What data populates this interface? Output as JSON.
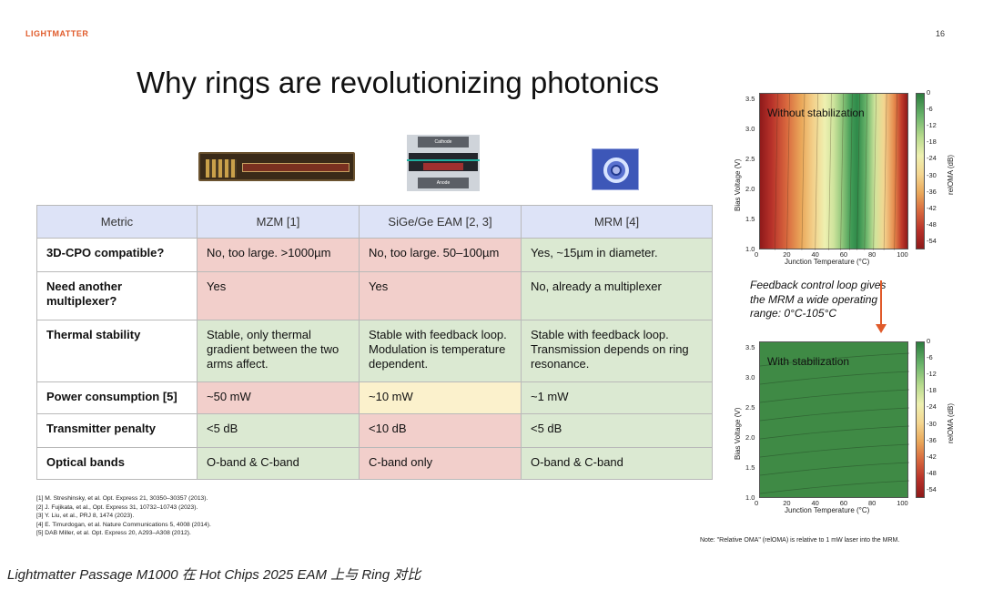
{
  "header": {
    "logo": "LIGHTMATTER",
    "page_number": "16"
  },
  "title": "Why rings are revolutionizing photonics",
  "device_images": {
    "mzm": "mzm-micrograph",
    "eam": "eam-cross-section",
    "mrm": "ring-modulator-micrograph",
    "eam_cathode": "Cathode",
    "eam_anode": "Anode"
  },
  "table": {
    "headers": [
      "Metric",
      "MZM [1]",
      "SiGe/Ge EAM [2, 3]",
      "MRM [4]"
    ],
    "rows": [
      {
        "metric": "3D-CPO compatible?",
        "mzm": "No, too large. >1000µm",
        "eam": "No, too large. 50–100µm",
        "mrm": "Yes, ~15µm in diameter.",
        "colors": [
          "red",
          "red",
          "green"
        ]
      },
      {
        "metric": "Need another multiplexer?",
        "mzm": "Yes",
        "eam": "Yes",
        "mrm": "No, already a multiplexer",
        "colors": [
          "red",
          "red",
          "green"
        ]
      },
      {
        "metric": "Thermal stability",
        "mzm": "Stable, only thermal gradient between the two arms affect.",
        "eam": "Stable with feedback loop. Modulation is temperature dependent.",
        "mrm": "Stable with feedback loop. Transmission depends on ring resonance.",
        "colors": [
          "green",
          "green",
          "green"
        ]
      },
      {
        "metric": "Power consumption [5]",
        "mzm": "~50 mW",
        "eam": "~10 mW",
        "mrm": "~1 mW",
        "colors": [
          "red",
          "yellow",
          "green"
        ]
      },
      {
        "metric": "Transmitter penalty",
        "mzm": "<5 dB",
        "eam": "<10 dB",
        "mrm": "<5 dB",
        "colors": [
          "green",
          "red",
          "green"
        ]
      },
      {
        "metric": "Optical bands",
        "mzm": "O-band & C-band",
        "eam": "C-band only",
        "mrm": "O-band & C-band",
        "colors": [
          "green",
          "red",
          "green"
        ]
      }
    ],
    "color_map": {
      "red": "#f2cfcb",
      "green": "#dbe9d2",
      "yellow": "#fbf1cc"
    }
  },
  "references": [
    "[1] M. Streshinsky, et al. Opt. Express 21, 30350–30357 (2013).",
    "[2] J. Fujikata, et al., Opt. Express 31, 10732–10743 (2023).",
    "[3] Y. Liu, et al., PRJ 8, 1474 (2023).",
    "[4] E. Timurdogan, et al. Nature Communications 5, 4008 (2014).",
    "[5] DAB Miller, et al. Opt. Express 20, A293–A308 (2012)."
  ],
  "feedback_text": "Feedback control loop gives the MRM a wide operating range: 0°C-105°C",
  "note": "Note: \"Relative OMA\" (relOMA) is relative to 1 mW laser into the MRM.",
  "caption": "Lightmatter Passage M1000 在 Hot Chips 2025 EAM 上与 Ring 对比",
  "chart_data": [
    {
      "type": "heatmap",
      "title": "Without stabilization",
      "xlabel": "Junction Temperature (°C)",
      "ylabel": "Bias Voltage (V)",
      "colorbar_label": "relOMA (dB)",
      "xlim": [
        0,
        105
      ],
      "ylim": [
        1.0,
        3.6
      ],
      "xticks": [
        "0",
        "20",
        "40",
        "60",
        "80",
        "100"
      ],
      "yticks": [
        "1.0",
        "1.5",
        "2.0",
        "2.5",
        "3.0",
        "3.5"
      ],
      "colorbar_ticks": [
        "0",
        "-6",
        "-12",
        "-18",
        "-24",
        "-30",
        "-36",
        "-42",
        "-48",
        "-54"
      ],
      "colorbar_range": [
        0,
        -57
      ],
      "pattern": "vertical bands: deep red at both temperature extremes, green peak near 70 °C"
    },
    {
      "type": "heatmap",
      "title": "With stabilization",
      "xlabel": "Junction Temperature (°C)",
      "ylabel": "Bias Voltage (V)",
      "colorbar_label": "relOMA (dB)",
      "xlim": [
        0,
        105
      ],
      "ylim": [
        1.0,
        3.6
      ],
      "xticks": [
        "0",
        "20",
        "40",
        "60",
        "80",
        "100"
      ],
      "yticks": [
        "1.0",
        "1.5",
        "2.0",
        "2.5",
        "3.0",
        "3.5"
      ],
      "colorbar_ticks": [
        "0",
        "-6",
        "-12",
        "-18",
        "-24",
        "-30",
        "-36",
        "-42",
        "-48",
        "-54"
      ],
      "colorbar_range": [
        0,
        -57
      ],
      "pattern": "uniform green across entire range"
    }
  ]
}
